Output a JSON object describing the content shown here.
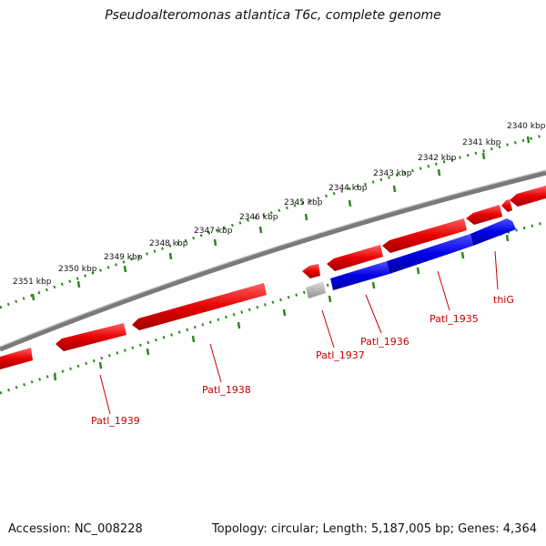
{
  "title": "Pseudoalteromonas atlantica T6c, complete genome",
  "footer": {
    "accession": "Accession: NC_008228",
    "summary": "Topology: circular; Length: 5,187,005 bp; Genes: 4,364"
  },
  "colors": {
    "backbone": "#808080",
    "tick": "#2a8a1a",
    "forward_gene": "#e60000",
    "reverse_gene": "#0000e0",
    "pseudo_gene": "#b8b8b8",
    "label": "#c80000"
  },
  "scale_labels": [
    "2340 kbp",
    "2341 kbp",
    "2342 kbp",
    "2343 kbp",
    "2344 kbp",
    "2345 kbp",
    "2346 kbp",
    "2347 kbp",
    "2348 kbp",
    "2349 kbp",
    "2350 kbp",
    "2351 kbp"
  ],
  "gene_labels": [
    "thiG",
    "Patl_1935",
    "Patl_1936",
    "Patl_1937",
    "Patl_1938",
    "Patl_1939"
  ]
}
